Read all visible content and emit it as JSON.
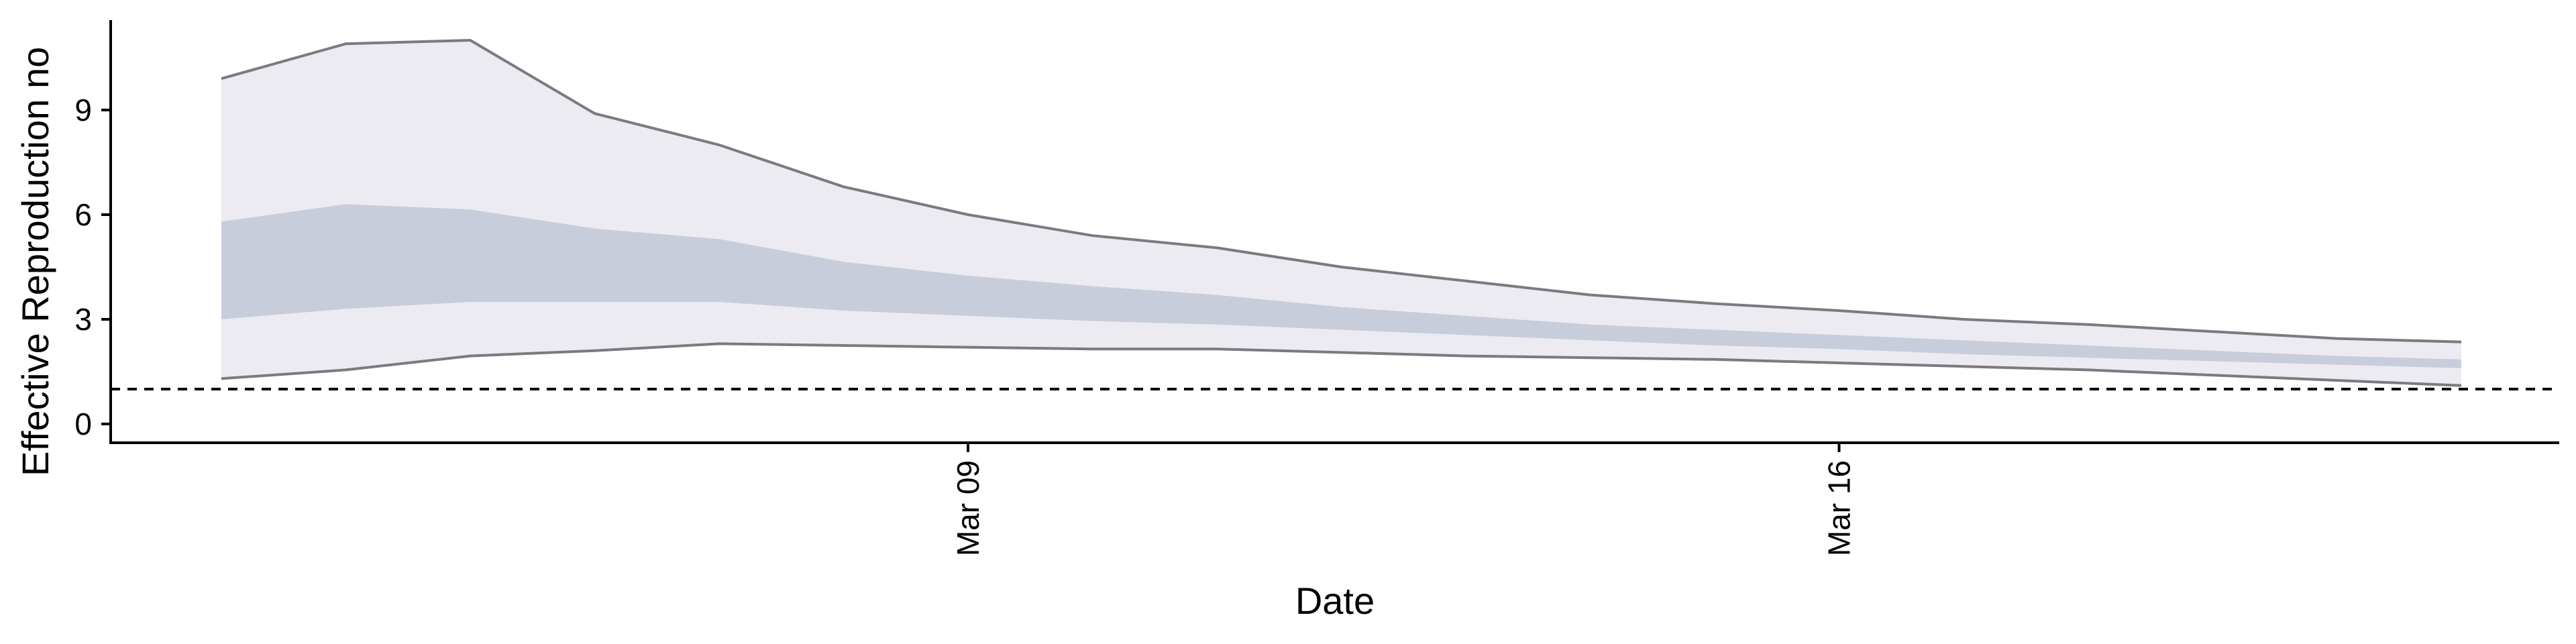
{
  "chart_data": {
    "type": "area",
    "xlabel": "Date",
    "ylabel": "Effective Reproduction no",
    "x_tick_labels": [
      "Mar 09",
      "Mar 16"
    ],
    "y_ticks": [
      0,
      3,
      6,
      9
    ],
    "ylim": [
      -0.5,
      11.7
    ],
    "reference_line": {
      "y": 1,
      "style": "dashed"
    },
    "x": [
      "Mar 03",
      "Mar 04",
      "Mar 05",
      "Mar 06",
      "Mar 07",
      "Mar 08",
      "Mar 09",
      "Mar 10",
      "Mar 11",
      "Mar 12",
      "Mar 13",
      "Mar 14",
      "Mar 15",
      "Mar 16",
      "Mar 17",
      "Mar 18",
      "Mar 19",
      "Mar 20",
      "Mar 21"
    ],
    "series": [
      {
        "band": "outer",
        "lower": [
          1.3,
          1.55,
          1.95,
          2.1,
          2.3,
          2.25,
          2.2,
          2.15,
          2.15,
          2.05,
          1.95,
          1.9,
          1.85,
          1.75,
          1.65,
          1.55,
          1.4,
          1.25,
          1.1
        ],
        "upper": [
          9.9,
          10.9,
          11.0,
          8.9,
          8.0,
          6.8,
          6.0,
          5.4,
          5.05,
          4.5,
          4.1,
          3.7,
          3.45,
          3.25,
          3.0,
          2.85,
          2.65,
          2.45,
          2.35
        ]
      },
      {
        "band": "inner",
        "lower": [
          3.0,
          3.3,
          3.5,
          3.5,
          3.5,
          3.25,
          3.1,
          2.95,
          2.85,
          2.7,
          2.55,
          2.4,
          2.25,
          2.15,
          2.0,
          1.9,
          1.8,
          1.7,
          1.6
        ],
        "upper": [
          5.8,
          6.3,
          6.15,
          5.6,
          5.3,
          4.65,
          4.25,
          3.95,
          3.7,
          3.35,
          3.1,
          2.85,
          2.7,
          2.55,
          2.4,
          2.25,
          2.1,
          1.95,
          1.85
        ]
      }
    ],
    "grid": false,
    "colors": {
      "outer_band": "#EBEBF1",
      "inner_band": "#C8CDDC",
      "bound_line": "#7A7A80",
      "axis": "#000000",
      "reference": "#000000"
    }
  }
}
